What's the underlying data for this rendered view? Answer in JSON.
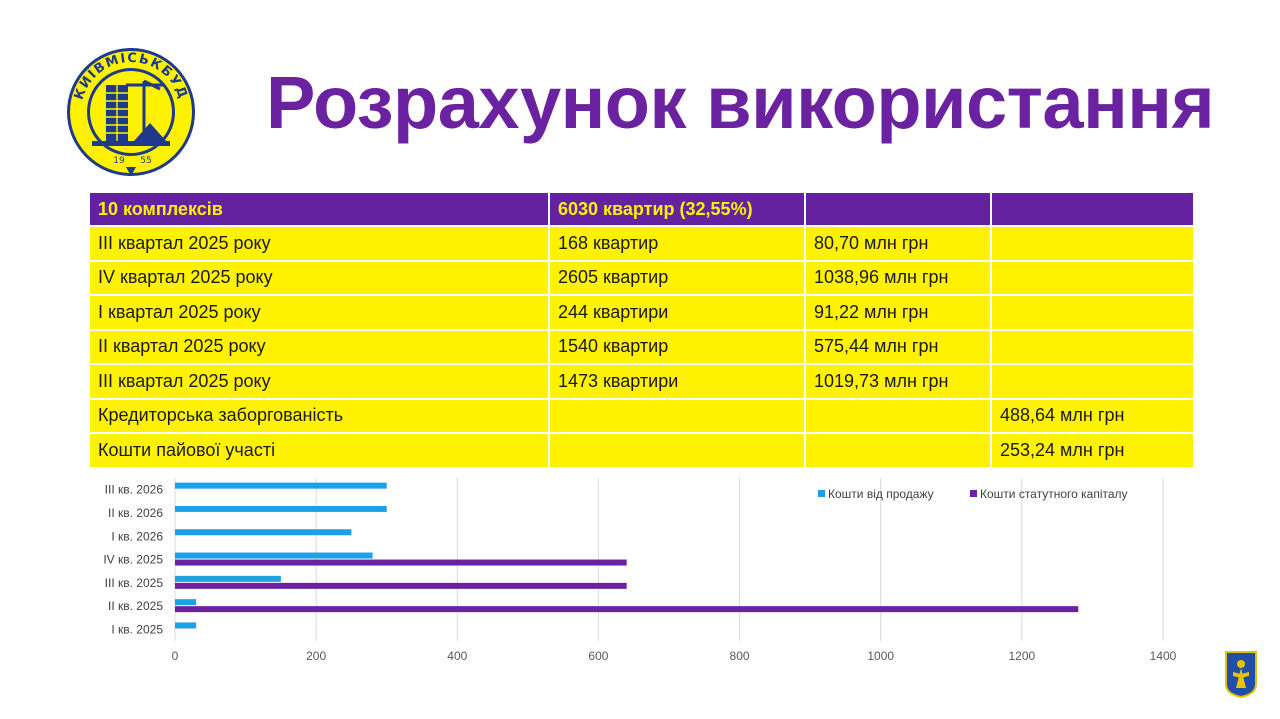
{
  "title": "Розрахунок використання",
  "logo": {
    "text": "КИЇВМІСЬКБУД",
    "year_left": "19",
    "year_right": "55",
    "colors": {
      "ring": "#1f3a8c",
      "fill": "#fff200"
    }
  },
  "table": {
    "header": [
      "10 комплексів",
      "6030 квартир (32,55%)",
      "",
      ""
    ],
    "rows": [
      [
        "ІІІ квартал 2025 року",
        "168 квартир",
        "80,70 млн грн",
        ""
      ],
      [
        "ІV квартал 2025 року",
        "2605 квартир",
        "1038,96 млн грн",
        ""
      ],
      [
        "І квартал 2025 року",
        "244 квартири",
        "91,22 млн грн",
        ""
      ],
      [
        "ІІ квартал 2025 року",
        "1540 квартир",
        "575,44 млн грн",
        ""
      ],
      [
        "ІІІ квартал 2025 року",
        "1473 квартири",
        "1019,73 млн грн",
        ""
      ],
      [
        "Кредиторська заборгованість",
        "",
        "",
        "488,64 млн грн"
      ],
      [
        "Кошти пайової участі",
        "",
        "",
        "253,24 млн грн"
      ]
    ],
    "colors": {
      "header_bg": "#6422a0",
      "header_text": "#fff200",
      "cell_bg": "#fff200"
    }
  },
  "chart_data": {
    "type": "bar",
    "orientation": "horizontal",
    "categories": [
      "І кв. 2025",
      "ІІ кв. 2025",
      "ІІІ кв. 2025",
      "IV кв. 2025",
      "І кв. 2026",
      "ІІ кв. 2026",
      "ІІІ кв. 2026"
    ],
    "series": [
      {
        "name": "Кошти від продажу",
        "color": "#1da1e6",
        "values": [
          30,
          30,
          150,
          280,
          250,
          300,
          300
        ]
      },
      {
        "name": "Кошти статутного капіталу",
        "color": "#6a22a0",
        "values": [
          0,
          1280,
          640,
          640,
          0,
          0,
          0
        ]
      }
    ],
    "xlim": [
      0,
      1400
    ],
    "xticks": [
      0,
      200,
      400,
      600,
      800,
      1000,
      1200,
      1400
    ],
    "grid": true,
    "legend": "top-right",
    "title": "",
    "xlabel": "",
    "ylabel": ""
  }
}
